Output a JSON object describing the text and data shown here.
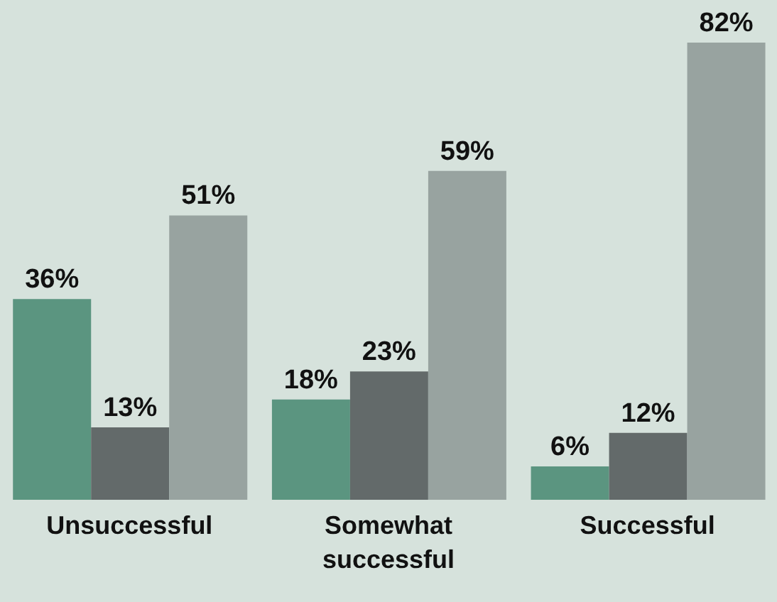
{
  "chart_data": {
    "type": "bar",
    "categories": [
      "Unsuccessful",
      "Somewhat successful",
      "Successful"
    ],
    "series": [
      {
        "color": "#5b9580",
        "values": [
          36,
          18,
          6
        ],
        "value_labels": [
          "36%",
          "18%",
          "6%"
        ]
      },
      {
        "color": "#636a6a",
        "values": [
          13,
          23,
          12
        ],
        "value_labels": [
          "13%",
          "23%",
          "12%"
        ]
      },
      {
        "color": "#98a3a0",
        "values": [
          51,
          59,
          82
        ],
        "value_labels": [
          "51%",
          "59%",
          "82%"
        ]
      }
    ],
    "legend": false,
    "grid": false
  }
}
